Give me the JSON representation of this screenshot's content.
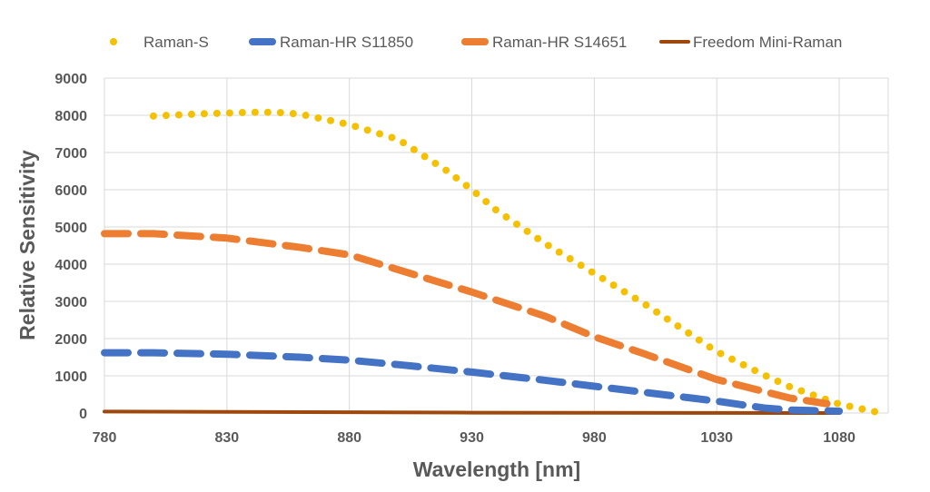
{
  "chart_data": {
    "type": "line",
    "title": "",
    "xlabel": "Wavelength [nm]",
    "ylabel": "Relative Sensitivity",
    "xlim": [
      780,
      1100
    ],
    "ylim": [
      0,
      9000
    ],
    "xticks": [
      780,
      830,
      880,
      930,
      980,
      1030,
      1080
    ],
    "yticks": [
      0,
      1000,
      2000,
      3000,
      4000,
      5000,
      6000,
      7000,
      8000,
      9000
    ],
    "grid": true,
    "legend_position": "top",
    "series": [
      {
        "name": "Raman-S",
        "color": "#F5C000",
        "style": "dotted",
        "x": [
          800,
          820,
          840,
          850,
          860,
          880,
          900,
          920,
          930,
          940,
          960,
          980,
          1000,
          1030,
          1050,
          1060,
          1080,
          1095
        ],
        "y": [
          7980,
          8040,
          8080,
          8080,
          8030,
          7750,
          7350,
          6500,
          6000,
          5450,
          4550,
          3750,
          2950,
          1650,
          1000,
          700,
          240,
          30
        ]
      },
      {
        "name": "Raman-HR S11850",
        "color": "#4472C4",
        "style": "dashed",
        "x": [
          780,
          800,
          830,
          860,
          880,
          900,
          930,
          960,
          980,
          1000,
          1030,
          1050,
          1060,
          1080
        ],
        "y": [
          1620,
          1620,
          1580,
          1500,
          1420,
          1300,
          1100,
          880,
          720,
          560,
          320,
          130,
          80,
          50
        ]
      },
      {
        "name": "Raman-HR S14651",
        "color": "#ED7D31",
        "style": "dashed",
        "x": [
          780,
          800,
          830,
          860,
          880,
          900,
          930,
          960,
          980,
          1000,
          1030,
          1060,
          1075
        ],
        "y": [
          4820,
          4820,
          4700,
          4450,
          4250,
          3850,
          3250,
          2600,
          2050,
          1600,
          900,
          400,
          250
        ]
      },
      {
        "name": "Freedom Mini-Raman",
        "color": "#9E480E",
        "style": "solid",
        "x": [
          780,
          830,
          880,
          930,
          980,
          1030,
          1080
        ],
        "y": [
          40,
          30,
          20,
          10,
          5,
          2,
          0
        ]
      }
    ]
  }
}
